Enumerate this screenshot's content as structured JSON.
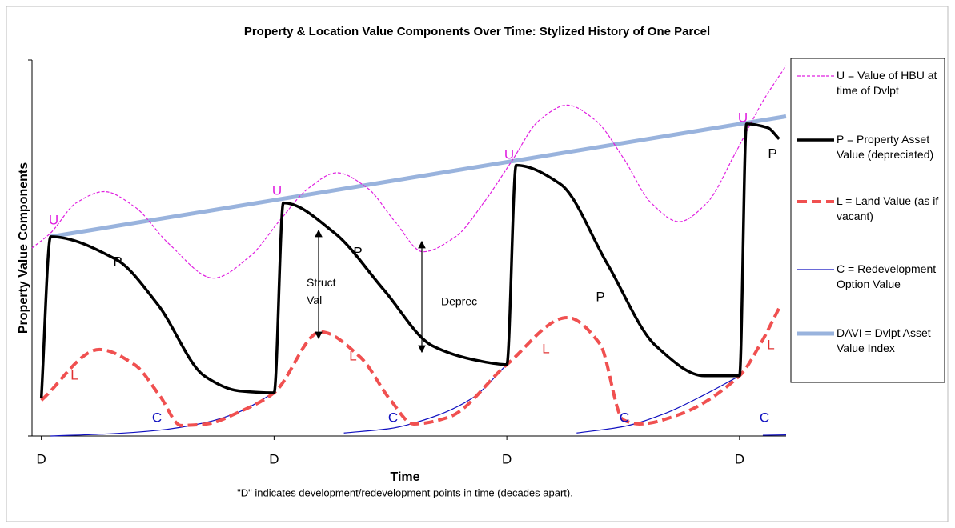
{
  "chart_data": {
    "type": "line",
    "title": "Property & Location Value Components Over Time: Stylized History of One Parcel",
    "x_label": "Time",
    "y_label": "Property Value Components",
    "note": "\"D\" indicates development/redevelopment points in time (decades apart).",
    "xlim": [
      -0.4,
      32
    ],
    "ylim": [
      0,
      100
    ],
    "xticks": [
      {
        "value": 0,
        "label": "D"
      },
      {
        "value": 10,
        "label": "D"
      },
      {
        "value": 20,
        "label": "D"
      },
      {
        "value": 30,
        "label": "D"
      }
    ],
    "series": [
      {
        "name": "U = Value of HBU at time of Dvlpt",
        "color": "#e020e0",
        "style": "dashed",
        "x": [
          -0.4,
          0.4,
          1.5,
          2.7,
          4,
          5.5,
          7.4,
          9,
          10.2,
          11.5,
          12.7,
          14,
          15.2,
          16.4,
          17.8,
          19,
          20.2,
          21.4,
          22.6,
          23.8,
          25,
          26.2,
          27.4,
          28.6,
          29.8,
          31,
          32
        ],
        "values": [
          50,
          54,
          62,
          65,
          61,
          51,
          42,
          48,
          57,
          66,
          70,
          66,
          57,
          49,
          53,
          62,
          73,
          84,
          88,
          84,
          74,
          62,
          57,
          62,
          75,
          89,
          98.5
        ]
      },
      {
        "name": "P = Property Asset Value (depreciated)",
        "color": "#000000",
        "style": "solid",
        "x": [
          0,
          0.4,
          3.2,
          5,
          7,
          8.5,
          10,
          10.4,
          12.6,
          14.7,
          16.8,
          18.8,
          20,
          20.4,
          22.3,
          24.3,
          26.4,
          28.5,
          30,
          30.3,
          31.2,
          31.7
        ],
        "values": [
          10,
          53,
          47,
          35,
          16,
          12,
          11.5,
          62,
          54,
          39,
          24,
          20,
          19,
          72,
          67,
          46,
          24,
          16,
          16,
          83,
          82,
          79
        ]
      },
      {
        "name": "L = Land Value (as if vacant)",
        "color": "#f05050",
        "style": "dashed",
        "x": [
          0,
          2.5,
          4,
          5.1,
          6,
          7.1,
          8.5,
          10,
          12,
          13.7,
          15,
          16,
          17.5,
          20,
          22.6,
          24,
          25,
          25.7,
          27.4,
          30,
          30.9,
          31.7
        ],
        "values": [
          9.5,
          23,
          19,
          10.6,
          2.8,
          3.2,
          6.4,
          11.5,
          27.7,
          21,
          9.6,
          3.2,
          5,
          19,
          31.5,
          24.5,
          4.3,
          3.2,
          5.7,
          16,
          24.5,
          34
        ]
      },
      {
        "name": "C = Redevelopment Option Value",
        "color": "#1010c0",
        "style": "thin",
        "x": [
          0.4,
          3,
          5,
          7,
          8.5,
          10,
          10.4,
          13,
          15,
          16.8,
          18.5,
          20,
          20.4,
          23,
          25,
          26.8,
          28.5,
          30,
          30.3,
          31,
          32
        ],
        "values": [
          0,
          0.6,
          1.5,
          3.5,
          6.4,
          11.5,
          null,
          0.8,
          2,
          5,
          10,
          19,
          null,
          0.8,
          2.5,
          6,
          11,
          16,
          null,
          0.2,
          0.3
        ]
      },
      {
        "name": "DAVI = Dvlpt Asset Value Index",
        "color": "#99b3dd",
        "style": "thick",
        "x": [
          0.4,
          32
        ],
        "values": [
          53,
          85
        ]
      }
    ],
    "annotations": [
      "U",
      "U",
      "U",
      "U",
      "P",
      "P",
      "P",
      "P",
      "L",
      "L",
      "L",
      "L",
      "C",
      "C",
      "C",
      "C",
      "Struct Val",
      "Deprec"
    ]
  }
}
